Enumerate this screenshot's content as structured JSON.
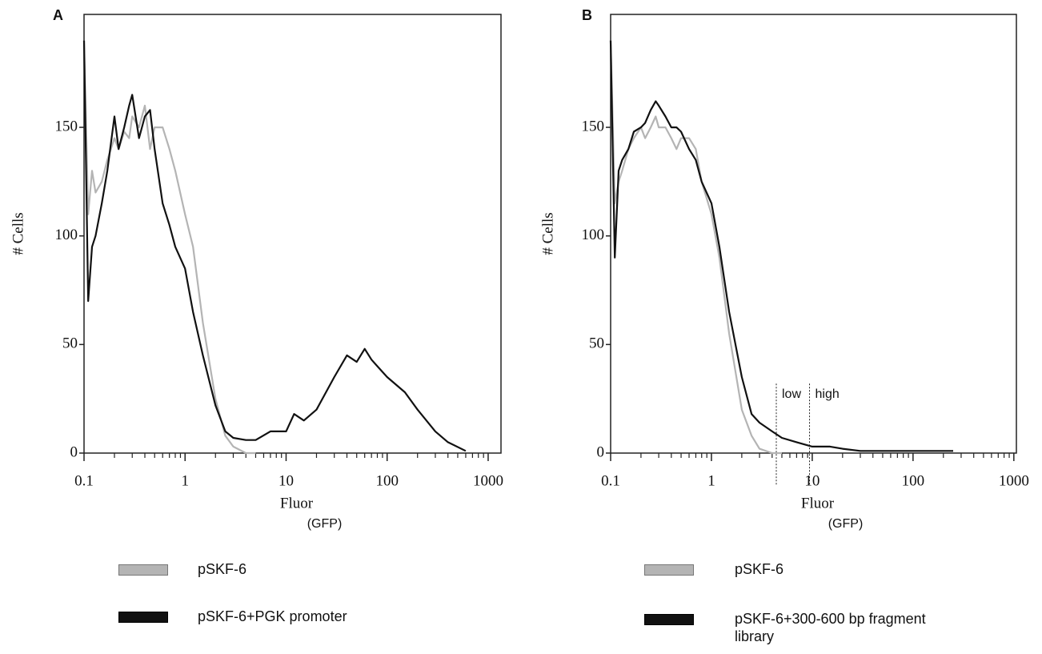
{
  "chart_data": [
    {
      "type": "line",
      "panel_label": "A",
      "x_label": "Fluor",
      "x_label_sub": "(GFP)",
      "y_label": "# Cells",
      "xscale": "log",
      "xlim": [
        0.1,
        1340
      ],
      "xticks": [
        0.1,
        1,
        10,
        100,
        1000
      ],
      "ylim": [
        0,
        202
      ],
      "yticks": [
        0,
        50,
        100,
        150
      ],
      "grid": false,
      "x": [
        0.1,
        0.11,
        0.12,
        0.13,
        0.15,
        0.17,
        0.2,
        0.22,
        0.25,
        0.28,
        0.3,
        0.35,
        0.4,
        0.45,
        0.5,
        0.6,
        0.7,
        0.8,
        1,
        1.2,
        1.5,
        2,
        2.5,
        3,
        4,
        5,
        7,
        10,
        12,
        15,
        20,
        30,
        40,
        50,
        60,
        70,
        80,
        100,
        150,
        200,
        300,
        400,
        600
      ],
      "series": [
        {
          "name": "pSKF-6",
          "color": "#b4b4b4",
          "values": [
            190,
            110,
            130,
            120,
            125,
            135,
            145,
            140,
            148,
            145,
            155,
            150,
            160,
            140,
            150,
            150,
            140,
            130,
            110,
            95,
            60,
            25,
            8,
            3,
            0,
            0,
            null,
            null,
            null,
            null,
            null,
            null,
            null,
            null,
            null,
            null,
            null,
            null,
            null,
            null,
            null,
            null,
            null
          ]
        },
        {
          "name": "pSKF-6+PGK promoter",
          "color": "#111111",
          "values": [
            190,
            70,
            95,
            100,
            115,
            130,
            155,
            140,
            150,
            160,
            165,
            145,
            155,
            158,
            140,
            115,
            105,
            95,
            85,
            65,
            45,
            22,
            10,
            7,
            6,
            6,
            10,
            10,
            18,
            15,
            20,
            35,
            45,
            42,
            48,
            43,
            40,
            35,
            28,
            20,
            10,
            5,
            1
          ]
        }
      ]
    },
    {
      "type": "line",
      "panel_label": "B",
      "x_label": "Fluor",
      "x_label_sub": "(GFP)",
      "y_label": "# Cells",
      "xscale": "log",
      "xlim": [
        0.1,
        1060
      ],
      "xticks": [
        0.1,
        1,
        10,
        100,
        1000
      ],
      "ylim": [
        0,
        202
      ],
      "yticks": [
        0,
        50,
        100,
        150
      ],
      "grid": false,
      "markers": [
        4.4,
        9.4
      ],
      "annotations": [
        "low",
        "high"
      ],
      "x": [
        0.1,
        0.11,
        0.12,
        0.13,
        0.15,
        0.17,
        0.2,
        0.22,
        0.25,
        0.28,
        0.3,
        0.35,
        0.4,
        0.45,
        0.5,
        0.6,
        0.7,
        0.8,
        1,
        1.2,
        1.5,
        2,
        2.5,
        3,
        4,
        5,
        7,
        10,
        12,
        15,
        20,
        30,
        40,
        50,
        60,
        70,
        80,
        100,
        150,
        200,
        250
      ],
      "series": [
        {
          "name": "pSKF-6",
          "color": "#b4b4b4",
          "values": [
            190,
            115,
            125,
            130,
            140,
            145,
            150,
            145,
            150,
            155,
            150,
            150,
            145,
            140,
            145,
            145,
            140,
            125,
            110,
            90,
            55,
            20,
            8,
            2,
            0,
            0,
            null,
            null,
            null,
            null,
            null,
            null,
            null,
            null,
            null,
            null,
            null,
            null,
            null,
            null,
            null
          ]
        },
        {
          "name": "pSKF-6+300-600 bp fragment library",
          "color": "#111111",
          "values": [
            190,
            90,
            130,
            135,
            140,
            148,
            150,
            152,
            158,
            162,
            160,
            155,
            150,
            150,
            148,
            140,
            135,
            125,
            115,
            95,
            65,
            35,
            18,
            14,
            10,
            7,
            5,
            3,
            3,
            3,
            2,
            1,
            1,
            1,
            1,
            1,
            1,
            1,
            1,
            1,
            1
          ]
        }
      ]
    }
  ]
}
